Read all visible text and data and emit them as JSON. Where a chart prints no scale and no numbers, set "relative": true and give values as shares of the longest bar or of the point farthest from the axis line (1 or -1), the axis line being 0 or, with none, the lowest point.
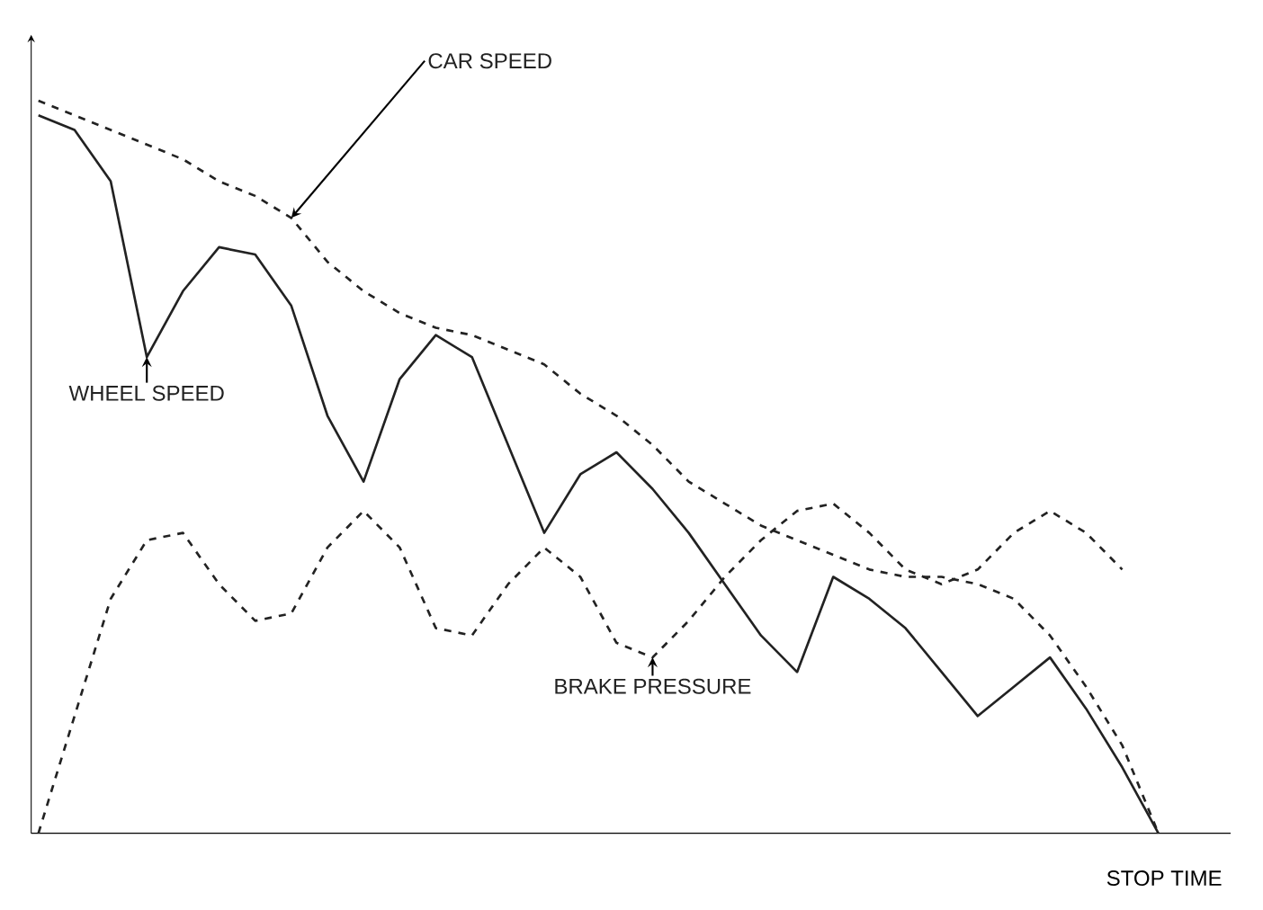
{
  "chart_data": {
    "type": "line",
    "relative": true,
    "xlabel": "STOP TIME",
    "categories": [
      null,
      null,
      null,
      null,
      null,
      null,
      null,
      null,
      null,
      null,
      null,
      null,
      null,
      null,
      null,
      null,
      null,
      null,
      null,
      null,
      null,
      null,
      null,
      null,
      null,
      null,
      null,
      null,
      null,
      null,
      null,
      null
    ],
    "series": [
      {
        "name": "CAR SPEED",
        "color": "#222222",
        "line_style": "dashed",
        "values": [
          1.0,
          0.98,
          0.96,
          0.94,
          0.92,
          0.89,
          0.87,
          0.84,
          0.78,
          0.74,
          0.71,
          0.69,
          0.68,
          0.66,
          0.64,
          0.6,
          0.57,
          0.53,
          0.48,
          0.45,
          0.42,
          0.4,
          0.38,
          0.36,
          0.35,
          0.35,
          0.34,
          0.32,
          0.27,
          0.2,
          0.12,
          0.0
        ]
      },
      {
        "name": "WHEEL SPEED",
        "color": "#222222",
        "line_style": "solid",
        "values": [
          0.98,
          0.96,
          0.89,
          0.65,
          0.74,
          0.8,
          0.79,
          0.72,
          0.57,
          0.48,
          0.62,
          0.68,
          0.65,
          0.53,
          0.41,
          0.49,
          0.52,
          0.47,
          0.41,
          0.34,
          0.27,
          0.22,
          0.35,
          0.32,
          0.28,
          0.22,
          0.16,
          0.2,
          0.24,
          0.17,
          0.09,
          0.0
        ]
      },
      {
        "name": "BRAKE PRESSURE",
        "color": "#222222",
        "line_style": "dashed",
        "values": [
          0.0,
          0.16,
          0.32,
          0.4,
          0.41,
          0.34,
          0.29,
          0.3,
          0.39,
          0.44,
          0.39,
          0.28,
          0.27,
          0.34,
          0.39,
          0.35,
          0.26,
          0.24,
          0.29,
          0.35,
          0.4,
          0.44,
          0.45,
          0.41,
          0.36,
          0.34,
          0.36,
          0.41,
          0.44,
          0.41,
          0.36,
          null
        ]
      }
    ],
    "marker": "none"
  }
}
